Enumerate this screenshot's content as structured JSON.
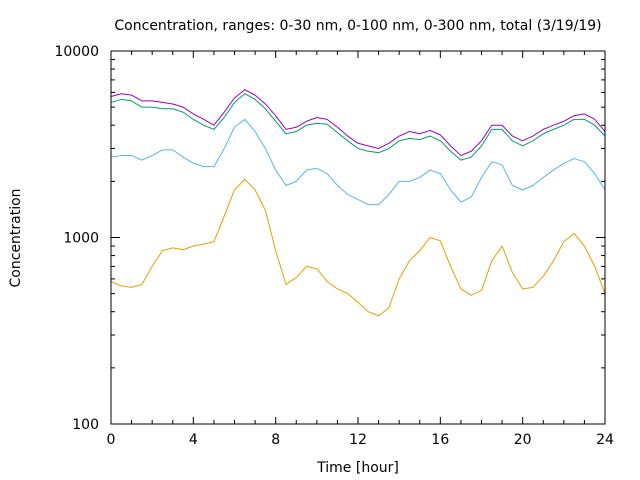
{
  "chart_data": {
    "type": "line",
    "title": "Concentration, ranges: 0-30 nm, 0-100 nm, 0-300 nm, total (3/19/19)",
    "xlabel": "Time [hour]",
    "ylabel": "Concentration",
    "xlim": [
      0,
      24
    ],
    "ylim": [
      100,
      10000
    ],
    "yscale": "log",
    "xticks": [
      0,
      4,
      8,
      12,
      16,
      20,
      24
    ],
    "xtick_labels": [
      "0",
      "4",
      "8",
      "12",
      "16",
      "20",
      "24"
    ],
    "yticks": [
      100,
      1000,
      10000
    ],
    "ytick_labels": [
      "100",
      "1000",
      "10000"
    ],
    "grid": false,
    "legend": "none",
    "x": [
      0,
      0.5,
      1,
      1.5,
      2,
      2.5,
      3,
      3.5,
      4,
      4.5,
      5,
      5.5,
      6,
      6.5,
      7,
      7.5,
      8,
      8.5,
      9,
      9.5,
      10,
      10.5,
      11,
      11.5,
      12,
      12.5,
      13,
      13.5,
      14,
      14.5,
      15,
      15.5,
      16,
      16.5,
      17,
      17.5,
      18,
      18.5,
      19,
      19.5,
      20,
      20.5,
      21,
      21.5,
      22,
      22.5,
      23,
      23.5,
      24
    ],
    "series": [
      {
        "color": "#e69f00",
        "values": [
          580,
          550,
          540,
          560,
          700,
          850,
          880,
          860,
          900,
          920,
          950,
          1300,
          1800,
          2050,
          1800,
          1400,
          850,
          560,
          610,
          700,
          680,
          580,
          530,
          500,
          450,
          400,
          380,
          420,
          600,
          750,
          850,
          1000,
          960,
          700,
          530,
          490,
          520,
          750,
          900,
          650,
          530,
          540,
          620,
          750,
          950,
          1050,
          900,
          700,
          500
        ]
      },
      {
        "color": "#56b4e9",
        "values": [
          2700,
          2750,
          2750,
          2600,
          2750,
          2950,
          2950,
          2700,
          2500,
          2400,
          2400,
          3000,
          3900,
          4300,
          3700,
          3000,
          2300,
          1900,
          2000,
          2300,
          2350,
          2200,
          1900,
          1700,
          1600,
          1500,
          1500,
          1700,
          2000,
          2000,
          2100,
          2300,
          2200,
          1800,
          1550,
          1650,
          2100,
          2550,
          2450,
          1900,
          1800,
          1900,
          2100,
          2300,
          2500,
          2650,
          2550,
          2200,
          1800
        ]
      },
      {
        "color": "#009e73",
        "values": [
          5300,
          5500,
          5400,
          5000,
          5000,
          4900,
          4900,
          4700,
          4300,
          4000,
          3800,
          4400,
          5300,
          5900,
          5500,
          4900,
          4200,
          3600,
          3700,
          4000,
          4100,
          4050,
          3650,
          3300,
          3000,
          2900,
          2850,
          3000,
          3300,
          3400,
          3350,
          3500,
          3300,
          2900,
          2600,
          2700,
          3100,
          3800,
          3800,
          3300,
          3100,
          3300,
          3600,
          3800,
          4000,
          4300,
          4300,
          4000,
          3500
        ]
      },
      {
        "color": "#9400d3",
        "values": [
          5700,
          5900,
          5800,
          5400,
          5400,
          5300,
          5200,
          5000,
          4600,
          4300,
          4000,
          4700,
          5600,
          6200,
          5800,
          5200,
          4500,
          3800,
          3900,
          4200,
          4400,
          4300,
          3900,
          3500,
          3200,
          3100,
          3000,
          3200,
          3500,
          3700,
          3600,
          3750,
          3550,
          3100,
          2750,
          2900,
          3300,
          4000,
          4000,
          3500,
          3300,
          3500,
          3800,
          4000,
          4200,
          4500,
          4600,
          4300,
          3700
        ]
      }
    ]
  }
}
